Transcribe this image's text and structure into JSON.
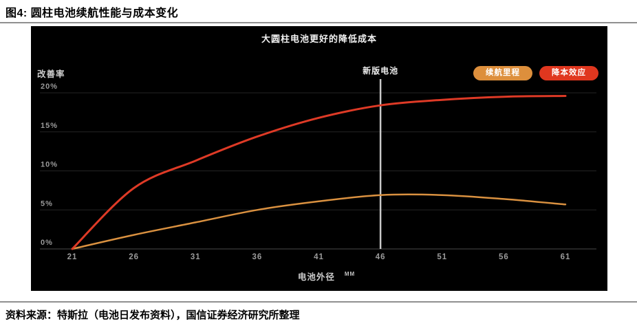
{
  "page": {
    "figure_title": "图4: 圆柱电池续航性能与成本变化",
    "source_note": "资料来源：特斯拉（电池日发布资料），国信证券经济研究所整理"
  },
  "chart": {
    "title": "大圆柱电池更好的降低成本",
    "y_axis_label": "改善率",
    "x_axis_label": "电池外径",
    "x_axis_unit": "MM",
    "annotation_label": "新版电池",
    "legend": [
      {
        "label": "续航里程",
        "color": "#DD8F3C"
      },
      {
        "label": "降本效应",
        "color": "#E0371F"
      }
    ],
    "colors": {
      "background": "#000000",
      "gridline": "#242424",
      "baseline": "#4a4a4a",
      "tick_text": "#9b9b9b",
      "annotation_line": "#c9c9c9"
    }
  },
  "chart_data": {
    "type": "line",
    "title": "大圆柱电池更好的降低成本",
    "xlabel": "电池外径 (MM)",
    "ylabel": "改善率",
    "x": [
      21,
      26,
      31,
      36,
      41,
      46,
      51,
      56,
      61
    ],
    "x_tick_labels": [
      "21",
      "26",
      "31",
      "36",
      "41",
      "46",
      "51",
      "56",
      "61"
    ],
    "series": [
      {
        "name": "续航里程",
        "color": "#DA9140",
        "values": [
          0,
          1.8,
          3.4,
          5.0,
          6.1,
          6.9,
          6.9,
          6.4,
          5.7
        ]
      },
      {
        "name": "降本效应",
        "color": "#DE3A26",
        "values": [
          0,
          7.8,
          11.3,
          14.4,
          16.8,
          18.4,
          19.1,
          19.5,
          19.6
        ]
      }
    ],
    "ylim": [
      0,
      20
    ],
    "y_ticks": [
      0,
      5,
      10,
      15,
      20
    ],
    "y_tick_labels": [
      "0%",
      "5%",
      "10%",
      "15%",
      "20%"
    ],
    "grid": "horizontal",
    "legend_position": "top-right",
    "annotation": {
      "label": "新版电池",
      "x": 46
    }
  }
}
